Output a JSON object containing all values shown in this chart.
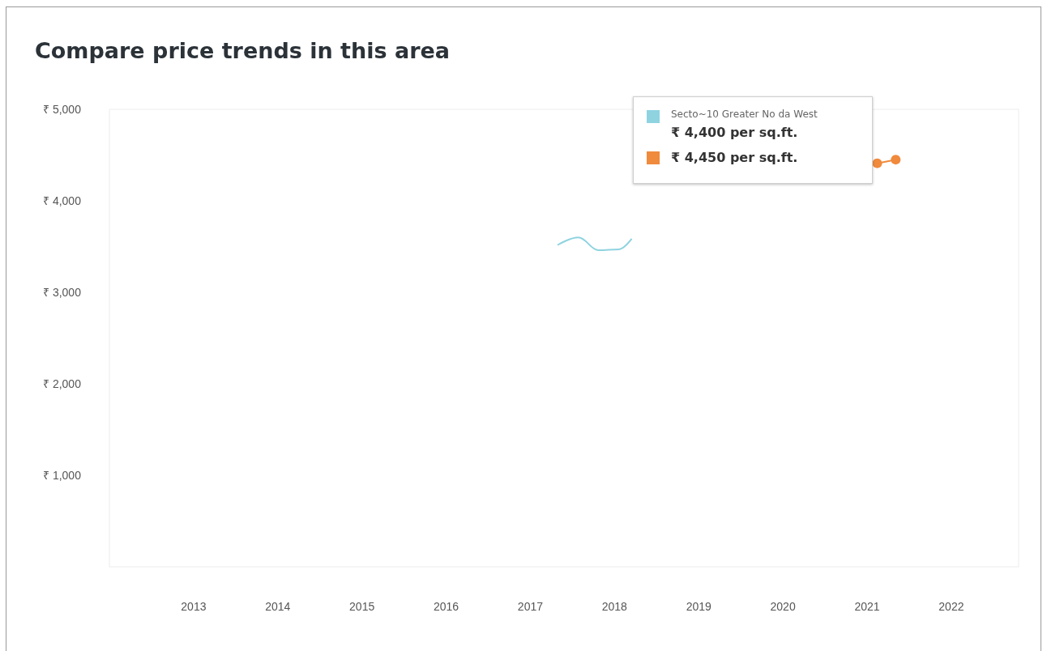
{
  "chart_data": {
    "type": "line",
    "title": "Compare price trends in this area",
    "xlim": [
      2012,
      2022.8
    ],
    "xticks": [
      2013,
      2014,
      2015,
      2016,
      2017,
      2018,
      2019,
      2020,
      2021,
      2022
    ],
    "ylim": [
      0,
      5000
    ],
    "yticks": [
      {
        "value": 1000,
        "label": "₹ 1,000"
      },
      {
        "value": 2000,
        "label": "₹ 2,000"
      },
      {
        "value": 3000,
        "label": "₹ 3,000"
      },
      {
        "value": 4000,
        "label": "₹ 4,000"
      },
      {
        "value": 5000,
        "label": "₹ 5,000"
      }
    ],
    "grid": false,
    "legend": "top right",
    "series": [
      {
        "name": "Secto~10 Greater No da West",
        "color": "#8fd3e0",
        "marker": "none",
        "x": [
          2017.33,
          2017.57,
          2017.81,
          2018.05,
          2018.2
        ],
        "values": [
          3520,
          3600,
          3460,
          3470,
          3580
        ]
      },
      {
        "color": "#f08a3c",
        "marker": "circle",
        "x": [
          2021.12,
          2021.34
        ],
        "values": [
          4410,
          4450
        ]
      }
    ],
    "annotations": [
      "₹ 4,400 per sq.ft.",
      "₹ 4,450 per sq.ft."
    ]
  }
}
